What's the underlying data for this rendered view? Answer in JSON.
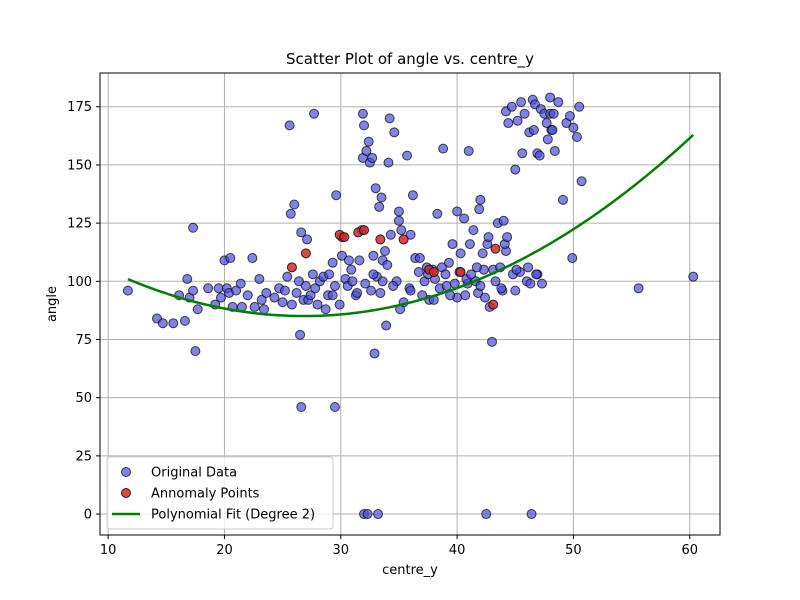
{
  "chart_data": {
    "type": "scatter",
    "title": "Scatter Plot of angle vs. centre_y",
    "xlabel": "centre_y",
    "ylabel": "angle",
    "xlim": [
      9.3,
      62.6
    ],
    "ylim": [
      -9,
      189.5
    ],
    "xticks": [
      10,
      20,
      30,
      40,
      50,
      60
    ],
    "yticks": [
      0,
      25,
      50,
      75,
      100,
      125,
      150,
      175
    ],
    "grid": true,
    "legend_position": "lower-left",
    "legend": [
      "Original Data",
      "Annomaly Points",
      "Polynomial Fit (Degree 2)"
    ],
    "colors": {
      "original": "#4b4bdc",
      "anomaly": "#d62728",
      "fit": "#008000",
      "grid": "#b0b0b0"
    },
    "series": [
      {
        "name": "Original Data",
        "kind": "scatter",
        "points": [
          [
            11.7,
            96
          ],
          [
            14.2,
            84
          ],
          [
            14.7,
            82
          ],
          [
            15.6,
            82
          ],
          [
            16.1,
            94
          ],
          [
            16.6,
            83
          ],
          [
            16.8,
            101
          ],
          [
            17.0,
            93
          ],
          [
            17.3,
            96
          ],
          [
            17.3,
            123
          ],
          [
            17.5,
            70
          ],
          [
            17.7,
            88
          ],
          [
            18.6,
            97
          ],
          [
            19.2,
            90
          ],
          [
            19.5,
            97
          ],
          [
            19.7,
            93
          ],
          [
            20.0,
            109
          ],
          [
            20.2,
            97
          ],
          [
            20.4,
            95
          ],
          [
            20.5,
            110
          ],
          [
            20.7,
            89
          ],
          [
            21.0,
            96
          ],
          [
            21.4,
            99
          ],
          [
            21.5,
            89
          ],
          [
            22.0,
            94
          ],
          [
            22.4,
            110
          ],
          [
            22.6,
            89
          ],
          [
            23.0,
            101
          ],
          [
            23.2,
            92
          ],
          [
            23.4,
            88
          ],
          [
            23.6,
            95
          ],
          [
            24.3,
            93
          ],
          [
            24.7,
            97
          ],
          [
            25.0,
            91
          ],
          [
            25.2,
            96
          ],
          [
            25.4,
            102
          ],
          [
            25.6,
            167
          ],
          [
            25.7,
            129
          ],
          [
            25.8,
            90
          ],
          [
            26.0,
            133
          ],
          [
            26.2,
            95
          ],
          [
            26.4,
            100
          ],
          [
            26.5,
            77
          ],
          [
            26.6,
            121
          ],
          [
            26.6,
            46
          ],
          [
            26.8,
            92
          ],
          [
            27.0,
            98
          ],
          [
            27.1,
            118
          ],
          [
            27.2,
            92
          ],
          [
            27.4,
            94
          ],
          [
            27.6,
            103
          ],
          [
            27.7,
            172
          ],
          [
            27.8,
            97
          ],
          [
            28.0,
            90
          ],
          [
            28.2,
            100
          ],
          [
            28.5,
            102
          ],
          [
            28.7,
            88
          ],
          [
            28.9,
            94
          ],
          [
            29.0,
            103
          ],
          [
            29.3,
            94
          ],
          [
            29.3,
            108
          ],
          [
            29.5,
            98
          ],
          [
            29.5,
            46
          ],
          [
            29.6,
            137
          ],
          [
            29.9,
            90
          ],
          [
            30.1,
            111
          ],
          [
            30.4,
            101
          ],
          [
            30.6,
            98
          ],
          [
            30.7,
            109
          ],
          [
            30.9,
            105
          ],
          [
            31.0,
            100
          ],
          [
            31.3,
            94
          ],
          [
            31.6,
            109
          ],
          [
            31.8,
            122
          ],
          [
            31.9,
            153
          ],
          [
            31.9,
            172
          ],
          [
            32.0,
            167
          ],
          [
            32.2,
            156
          ],
          [
            32.4,
            160
          ],
          [
            32.5,
            151
          ],
          [
            32.6,
            96
          ],
          [
            32.7,
            153
          ],
          [
            32.8,
            111
          ],
          [
            32.9,
            69
          ],
          [
            33.0,
            140
          ],
          [
            33.1,
            102
          ],
          [
            33.3,
            132
          ],
          [
            33.5,
            136
          ],
          [
            33.6,
            109
          ],
          [
            33.6,
            100
          ],
          [
            33.8,
            113
          ],
          [
            33.9,
            81
          ],
          [
            34.0,
            107
          ],
          [
            34.1,
            151
          ],
          [
            34.2,
            170
          ],
          [
            34.3,
            120
          ],
          [
            34.6,
            164
          ],
          [
            34.8,
            100
          ],
          [
            35.0,
            130
          ],
          [
            35.0,
            126
          ],
          [
            35.2,
            122
          ],
          [
            35.4,
            91
          ],
          [
            35.7,
            154
          ],
          [
            35.9,
            97
          ],
          [
            36.0,
            120
          ],
          [
            36.2,
            137
          ],
          [
            36.4,
            110
          ],
          [
            36.7,
            104
          ],
          [
            37.0,
            94
          ],
          [
            37.2,
            100
          ],
          [
            37.4,
            106
          ],
          [
            37.6,
            92
          ],
          [
            37.9,
            105
          ],
          [
            38.1,
            101
          ],
          [
            38.3,
            129
          ],
          [
            38.5,
            97
          ],
          [
            38.7,
            106
          ],
          [
            38.8,
            157
          ],
          [
            39.1,
            98
          ],
          [
            39.3,
            108
          ],
          [
            39.6,
            116
          ],
          [
            39.8,
            99
          ],
          [
            40.0,
            130
          ],
          [
            40.0,
            93
          ],
          [
            40.2,
            104
          ],
          [
            40.3,
            112
          ],
          [
            40.6,
            127
          ],
          [
            40.7,
            94
          ],
          [
            40.9,
            99
          ],
          [
            41.0,
            156
          ],
          [
            41.1,
            116
          ],
          [
            41.4,
            122
          ],
          [
            41.6,
            100
          ],
          [
            41.8,
            95
          ],
          [
            41.9,
            131
          ],
          [
            42.0,
            135
          ],
          [
            42.2,
            112
          ],
          [
            42.3,
            105
          ],
          [
            42.4,
            93
          ],
          [
            42.6,
            116
          ],
          [
            42.7,
            119
          ],
          [
            42.8,
            89
          ],
          [
            43.0,
            74
          ],
          [
            43.1,
            105
          ],
          [
            43.3,
            100
          ],
          [
            43.5,
            125
          ],
          [
            43.7,
            106
          ],
          [
            43.9,
            96
          ],
          [
            44.0,
            126
          ],
          [
            44.2,
            113
          ],
          [
            44.2,
            173
          ],
          [
            44.4,
            168
          ],
          [
            44.7,
            175
          ],
          [
            44.8,
            103
          ],
          [
            45.0,
            96
          ],
          [
            45.0,
            148
          ],
          [
            45.2,
            169
          ],
          [
            45.4,
            104
          ],
          [
            45.5,
            177
          ],
          [
            45.6,
            155
          ],
          [
            45.8,
            172
          ],
          [
            46.0,
            100
          ],
          [
            46.1,
            106
          ],
          [
            46.2,
            164
          ],
          [
            46.4,
            0
          ],
          [
            46.5,
            178
          ],
          [
            46.6,
            165
          ],
          [
            46.7,
            176
          ],
          [
            46.9,
            103
          ],
          [
            46.9,
            155
          ],
          [
            47.1,
            154
          ],
          [
            47.2,
            174
          ],
          [
            47.5,
            172
          ],
          [
            47.7,
            168
          ],
          [
            47.8,
            161
          ],
          [
            48.0,
            172
          ],
          [
            48.0,
            179
          ],
          [
            48.1,
            165
          ],
          [
            48.3,
            172
          ],
          [
            48.4,
            156
          ],
          [
            48.7,
            177
          ],
          [
            49.1,
            135
          ],
          [
            49.4,
            168
          ],
          [
            49.7,
            171
          ],
          [
            49.9,
            110
          ],
          [
            50.0,
            166
          ],
          [
            50.3,
            162
          ],
          [
            50.5,
            175
          ],
          [
            50.7,
            143
          ],
          [
            55.6,
            97
          ],
          [
            60.3,
            102
          ],
          [
            32.0,
            0
          ],
          [
            32.3,
            0
          ],
          [
            33.2,
            0
          ],
          [
            42.5,
            0
          ],
          [
            30.1,
            119
          ],
          [
            31.4,
            95
          ],
          [
            32.1,
            99
          ],
          [
            32.8,
            103
          ],
          [
            33.4,
            95
          ],
          [
            34.5,
            98
          ],
          [
            35.1,
            88
          ],
          [
            36.0,
            96
          ],
          [
            36.8,
            110
          ],
          [
            37.5,
            103
          ],
          [
            38.0,
            92
          ],
          [
            39.0,
            103
          ],
          [
            39.4,
            94
          ],
          [
            40.8,
            101
          ],
          [
            41.2,
            103
          ],
          [
            41.7,
            106
          ],
          [
            42.0,
            98
          ],
          [
            43.8,
            97
          ],
          [
            44.1,
            116
          ],
          [
            44.3,
            119
          ],
          [
            45.1,
            105
          ],
          [
            46.3,
            99
          ],
          [
            46.8,
            103
          ],
          [
            47.3,
            99
          ],
          [
            48.2,
            165
          ]
        ]
      },
      {
        "name": "Annomaly Points",
        "kind": "scatter",
        "points": [
          [
            25.8,
            106
          ],
          [
            27.0,
            112
          ],
          [
            29.9,
            120
          ],
          [
            30.3,
            119
          ],
          [
            31.5,
            121
          ],
          [
            32.0,
            122
          ],
          [
            33.4,
            118
          ],
          [
            35.4,
            118
          ],
          [
            37.6,
            105
          ],
          [
            38.0,
            104
          ],
          [
            40.3,
            104
          ],
          [
            43.3,
            114
          ],
          [
            43.1,
            90
          ]
        ]
      },
      {
        "name": "Polynomial Fit (Degree 2)",
        "kind": "line",
        "coefficients": [
          135.03,
          -3.7255,
          0.06945
        ],
        "x_range": [
          11.7,
          60.3
        ]
      }
    ]
  }
}
